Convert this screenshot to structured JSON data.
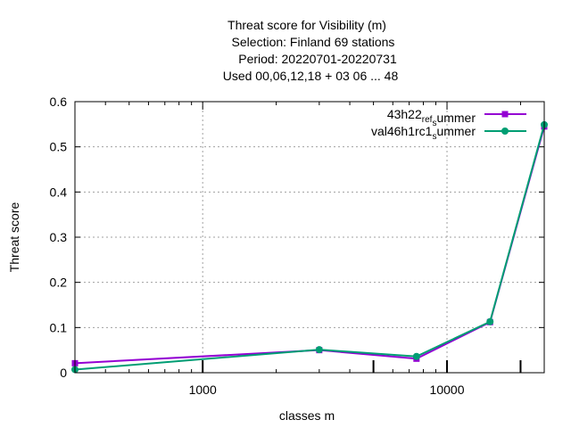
{
  "chart_data": {
    "type": "line",
    "title_lines": [
      "Threat score  for Visibility (m)",
      "Selection: Finland     69 stations",
      "Period: 20220701-20220731",
      "Used  00,06,12,18  + 03 06 ... 48"
    ],
    "xlabel": "classes m",
    "ylabel": "Threat score",
    "x_scale": "log",
    "xlim": [
      300,
      25000
    ],
    "ylim": [
      0,
      0.6
    ],
    "x_ticks": [
      {
        "value": 1000,
        "label": "1000"
      },
      {
        "value": 10000,
        "label": "10000"
      }
    ],
    "y_ticks": [
      {
        "value": 0,
        "label": "0"
      },
      {
        "value": 0.1,
        "label": "0.1"
      },
      {
        "value": 0.2,
        "label": "0.2"
      },
      {
        "value": 0.3,
        "label": "0.3"
      },
      {
        "value": 0.4,
        "label": "0.4"
      },
      {
        "value": 0.5,
        "label": "0.5"
      },
      {
        "value": 0.6,
        "label": "0.6"
      }
    ],
    "grid": true,
    "legend_position": "top-right",
    "bottom_markers_x": [
      1000,
      5000,
      10000,
      20000
    ],
    "series": [
      {
        "name": "43h22_ref_summer",
        "legend_parts": [
          "43h22",
          "ref",
          "s",
          "ummer"
        ],
        "color": "#9400d3",
        "marker": "square",
        "x": [
          300,
          3000,
          7500,
          15000,
          25000
        ],
        "y": [
          0.021,
          0.05,
          0.031,
          0.112,
          0.545
        ]
      },
      {
        "name": "val46h1rc1_summer",
        "legend_parts": [
          "val46h1rc1",
          "s",
          "ummer"
        ],
        "color": "#009e73",
        "marker": "circle",
        "x": [
          300,
          3000,
          7500,
          15000,
          25000
        ],
        "y": [
          0.007,
          0.051,
          0.036,
          0.113,
          0.549
        ]
      }
    ]
  }
}
